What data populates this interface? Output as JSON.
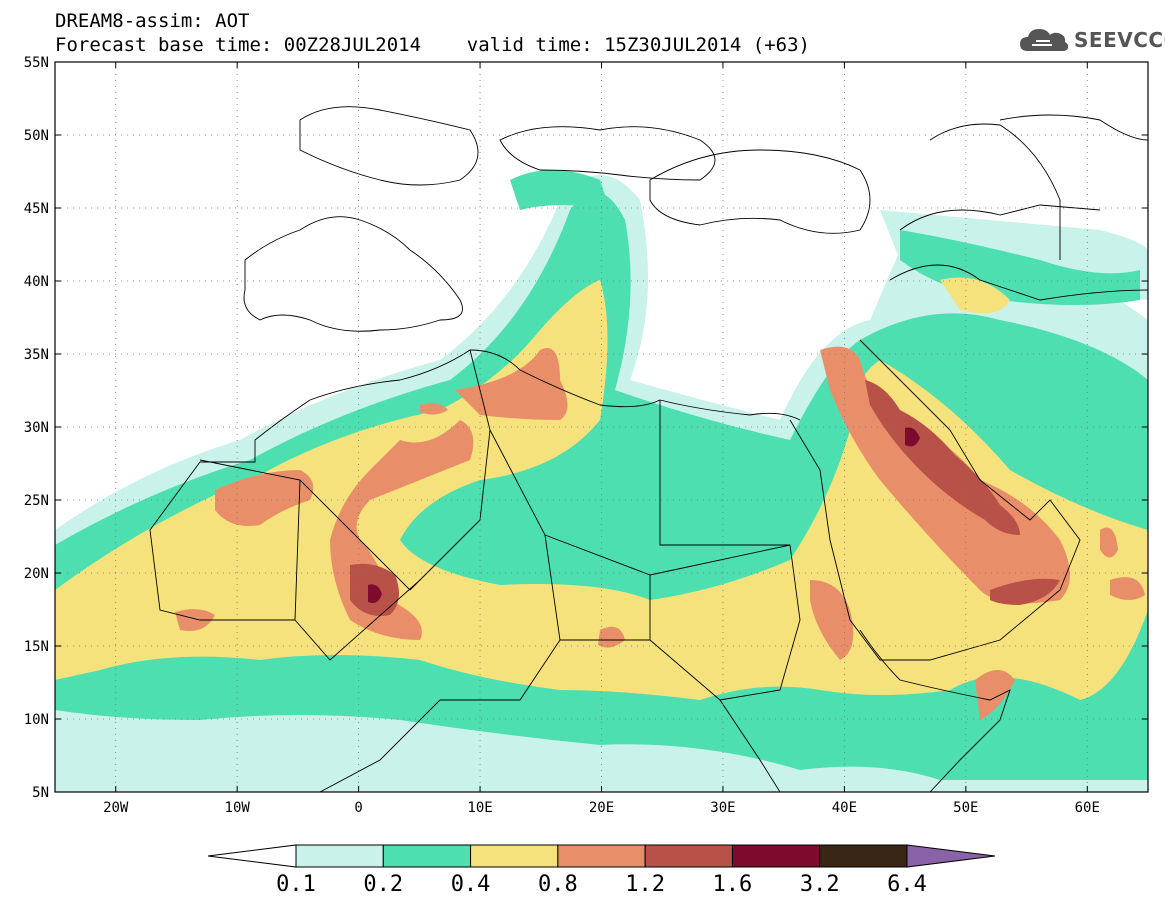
{
  "header": {
    "title": "DREAM8-assim: AOT",
    "subtitle": "Forecast base time: 00Z28JUL2014    valid time: 15Z30JUL2014 (+63)",
    "logo_text": "SEEVCCC"
  },
  "map": {
    "lon_range": [
      -25,
      65
    ],
    "lat_range": [
      5,
      55
    ],
    "lon_ticks": [
      {
        "lon": -20,
        "label": "20W"
      },
      {
        "lon": -10,
        "label": "10W"
      },
      {
        "lon": 0,
        "label": "0"
      },
      {
        "lon": 10,
        "label": "10E"
      },
      {
        "lon": 20,
        "label": "20E"
      },
      {
        "lon": 30,
        "label": "30E"
      },
      {
        "lon": 40,
        "label": "40E"
      },
      {
        "lon": 50,
        "label": "50E"
      },
      {
        "lon": 60,
        "label": "60E"
      }
    ],
    "lat_ticks": [
      {
        "lat": 5,
        "label": "5N"
      },
      {
        "lat": 10,
        "label": "10N"
      },
      {
        "lat": 15,
        "label": "15N"
      },
      {
        "lat": 20,
        "label": "20N"
      },
      {
        "lat": 25,
        "label": "25N"
      },
      {
        "lat": 30,
        "label": "30N"
      },
      {
        "lat": 35,
        "label": "35N"
      },
      {
        "lat": 40,
        "label": "40N"
      },
      {
        "lat": 45,
        "label": "45N"
      },
      {
        "lat": 50,
        "label": "50N"
      },
      {
        "lat": 55,
        "label": "55N"
      }
    ],
    "grid": true,
    "grid_style": "dotted"
  },
  "colorbar": {
    "levels": [
      "0.1",
      "0.2",
      "0.4",
      "0.8",
      "1.2",
      "1.6",
      "3.2",
      "6.4"
    ],
    "colors": [
      "#ffffff",
      "#c8f2ea",
      "#4ddfb0",
      "#f6e27c",
      "#e88f6a",
      "#b85248",
      "#7e0a2e",
      "#3a2616",
      "#8a62a8"
    ]
  }
}
